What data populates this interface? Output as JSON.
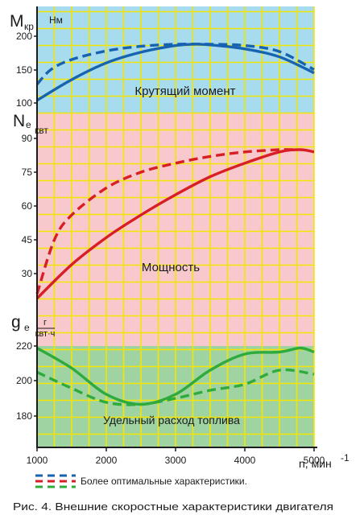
{
  "chart_data": [
    {
      "type": "line",
      "panel": "torque",
      "axis_symbol": "M",
      "axis_subscript": "кр",
      "unit": "Нм",
      "ylim": [
        100,
        200
      ],
      "yticks": [
        "100",
        "150",
        "200"
      ],
      "label": "Крутящий момент",
      "background": "#a7dcef",
      "series": [
        {
          "color": "#1763b0",
          "style": "solid",
          "x": [
            1000,
            1500,
            2000,
            2500,
            3000,
            3250,
            3500,
            4000,
            4500,
            5000
          ],
          "y": [
            104,
            135,
            160,
            176,
            186,
            188,
            187,
            181,
            169,
            145
          ]
        },
        {
          "color": "#1763b0",
          "style": "dashed",
          "x": [
            1000,
            1200,
            1500,
            2000,
            2500,
            3000,
            3500,
            4000,
            4500,
            5000
          ],
          "y": [
            128,
            150,
            165,
            178,
            185,
            188,
            188,
            186,
            177,
            150
          ]
        }
      ]
    },
    {
      "type": "line",
      "panel": "power",
      "axis_symbol": "N",
      "axis_subscript": "е",
      "unit": "квт",
      "ylim": [
        15,
        90
      ],
      "yticks": [
        "30",
        "45",
        "60",
        "75",
        "90"
      ],
      "label": "Мощность",
      "background": "#f8c9cc",
      "series": [
        {
          "color": "#d81f26",
          "style": "solid",
          "x": [
            1000,
            1500,
            2000,
            2500,
            3000,
            3500,
            4000,
            4500,
            4800,
            5000
          ],
          "y": [
            19,
            34,
            46,
            56,
            65,
            73,
            79,
            84,
            85,
            84
          ]
        },
        {
          "color": "#d81f26",
          "style": "dashed",
          "x": [
            1000,
            1250,
            1500,
            2000,
            2500,
            3000,
            3500,
            4000,
            4500,
            4700
          ],
          "y": [
            21,
            45,
            56,
            68,
            75,
            79,
            82,
            84,
            85,
            85
          ]
        }
      ]
    },
    {
      "type": "line",
      "panel": "fuel",
      "axis_symbol": "g",
      "axis_subscript": "е",
      "unit_num": "г",
      "unit_den": "квт·ч",
      "ylim": [
        170,
        220
      ],
      "yticks": [
        "180",
        "200",
        "220"
      ],
      "label": "Удельный расход топлива",
      "background": "#9fd4a2",
      "series": [
        {
          "color": "#2faa3c",
          "style": "solid",
          "x": [
            1000,
            1500,
            2000,
            2500,
            3000,
            3500,
            4000,
            4500,
            4800,
            5000
          ],
          "y": [
            219,
            209,
            196,
            191,
            196,
            208,
            216,
            217,
            219,
            217
          ]
        },
        {
          "color": "#2faa3c",
          "style": "dashed",
          "x": [
            1000,
            1500,
            2000,
            2500,
            3000,
            3500,
            4000,
            4500,
            5000
          ],
          "y": [
            207,
            199,
            192,
            191,
            194,
            198,
            201,
            208,
            206
          ]
        }
      ]
    }
  ],
  "x_axis": {
    "xlim": [
      1000,
      5000
    ],
    "ticks": [
      "1000",
      "2000",
      "3000",
      "4000",
      "5000"
    ],
    "label": "n, мин",
    "label_superscript": "-1"
  },
  "legend": {
    "text": "Более оптимальные характеристики."
  },
  "caption": "Рис. 4. Внешние скоростные характеристики двигателя",
  "colors": {
    "grid": "#f2e600",
    "axis": "#1b1b1b"
  }
}
